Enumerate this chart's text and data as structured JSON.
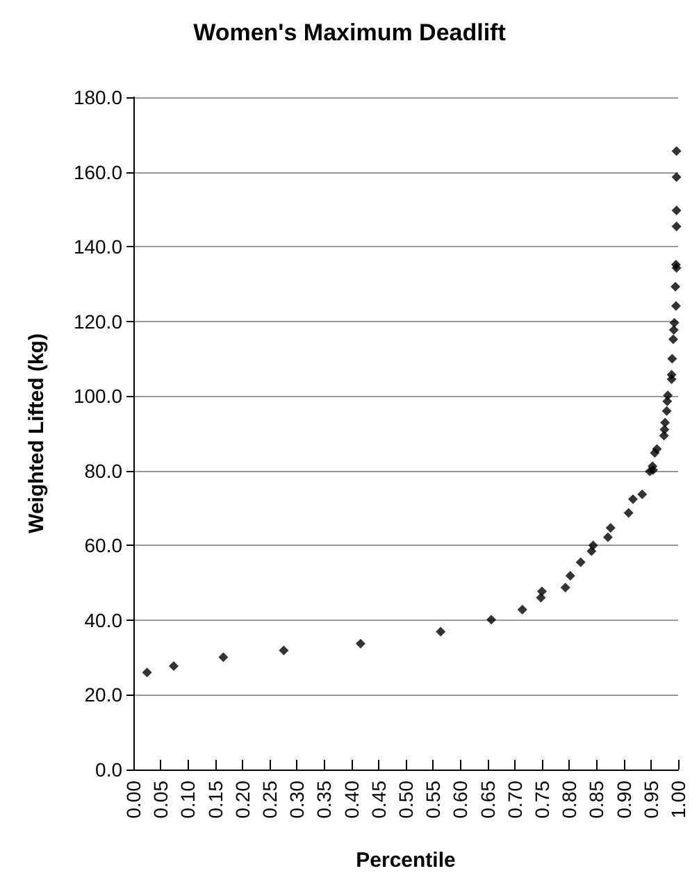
{
  "chart_data": {
    "type": "scatter",
    "title": "Women's Maximum Deadlift",
    "xlabel": "Percentile",
    "ylabel": "Weighted Lifted (kg)",
    "x": [
      0.025,
      0.074,
      0.165,
      0.276,
      0.417,
      0.564,
      0.657,
      0.714,
      0.748,
      0.75,
      0.793,
      0.802,
      0.821,
      0.841,
      0.844,
      0.871,
      0.876,
      0.909,
      0.917,
      0.934,
      0.945,
      0.948,
      0.953,
      0.954,
      0.957,
      0.961,
      0.974,
      0.975,
      0.976,
      0.979,
      0.98,
      0.981,
      0.988,
      0.988,
      0.989,
      0.991,
      0.992,
      0.993,
      0.996,
      0.995,
      0.997,
      0.996,
      0.997,
      0.997,
      0.997,
      0.997
    ],
    "values": [
      26.0,
      27.7,
      30.1,
      31.9,
      33.7,
      36.9,
      40.1,
      42.8,
      46.0,
      47.7,
      48.7,
      51.9,
      55.5,
      58.5,
      60.0,
      62.2,
      64.7,
      68.7,
      72.4,
      73.7,
      null,
      79.8,
      81.2,
      80.2,
      84.8,
      85.8,
      89.4,
      91.0,
      92.9,
      96.0,
      98.6,
      100.2,
      104.5,
      105.7,
      110.0,
      115.2,
      117.7,
      119.6,
      124.1,
      129.3,
      134.3,
      135.2,
      145.4,
      149.7,
      158.6,
      165.6
    ],
    "color": "#000000",
    "marker": "diamond",
    "xlim": [
      0,
      1
    ],
    "ylim": [
      0,
      180
    ],
    "xticks": [
      {
        "value": 0,
        "label": "0.00"
      },
      {
        "value": 0.05,
        "label": "0.05"
      },
      {
        "value": 0.1,
        "label": "0.10"
      },
      {
        "value": 0.15,
        "label": "0.15"
      },
      {
        "value": 0.2,
        "label": "0.20"
      },
      {
        "value": 0.25,
        "label": "0.25"
      },
      {
        "value": 0.3,
        "label": "0.30"
      },
      {
        "value": 0.35,
        "label": "0.35"
      },
      {
        "value": 0.4,
        "label": "0.40"
      },
      {
        "value": 0.45,
        "label": "0.45"
      },
      {
        "value": 0.5,
        "label": "0.50"
      },
      {
        "value": 0.55,
        "label": "0.55"
      },
      {
        "value": 0.6,
        "label": "0.60"
      },
      {
        "value": 0.65,
        "label": "0.65"
      },
      {
        "value": 0.7,
        "label": "0.70"
      },
      {
        "value": 0.75,
        "label": "0.75"
      },
      {
        "value": 0.8,
        "label": "0.80"
      },
      {
        "value": 0.85,
        "label": "0.85"
      },
      {
        "value": 0.9,
        "label": "0.90"
      },
      {
        "value": 0.95,
        "label": "0.95"
      },
      {
        "value": 1,
        "label": "1.00"
      }
    ],
    "yticks": [
      {
        "value": 0,
        "label": "0.0"
      },
      {
        "value": 20,
        "label": "20.0"
      },
      {
        "value": 40,
        "label": "40.0"
      },
      {
        "value": 60,
        "label": "60.0"
      },
      {
        "value": 80,
        "label": "80.0"
      },
      {
        "value": 100,
        "label": "100.0"
      },
      {
        "value": 120,
        "label": "120.0"
      },
      {
        "value": 140,
        "label": "140.0"
      },
      {
        "value": 160,
        "label": "160.0"
      },
      {
        "value": 180,
        "label": "180.0"
      }
    ],
    "grid": "y"
  }
}
